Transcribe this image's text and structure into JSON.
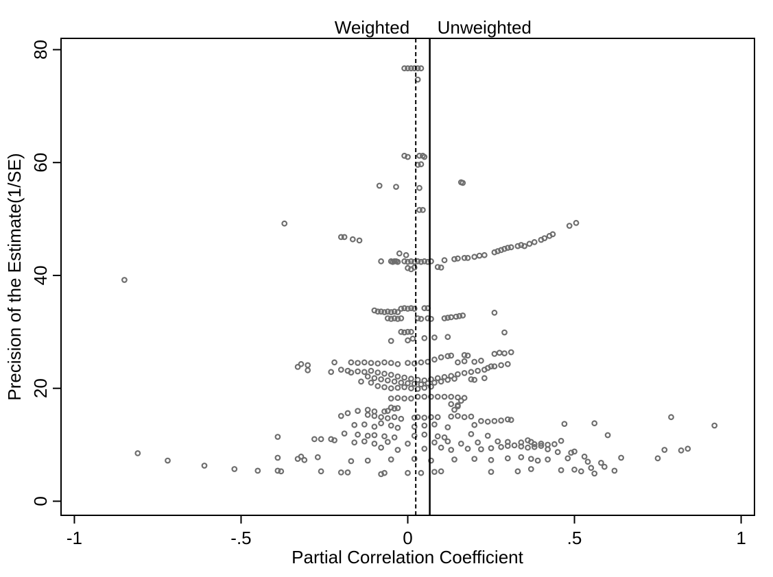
{
  "chart_data": {
    "type": "scatter",
    "title": "",
    "xlabel": "Partial Correlation Coefficient",
    "ylabel": "Precision of the Estimate(1/SE)",
    "xlim": [
      -1.04,
      1.04
    ],
    "ylim": [
      -2.5,
      82
    ],
    "xticks": [
      {
        "value": -1,
        "label": "-1"
      },
      {
        "value": -0.5,
        "label": "-.5"
      },
      {
        "value": 0,
        "label": "0"
      },
      {
        "value": 0.5,
        "label": ".5"
      },
      {
        "value": 1,
        "label": "1"
      }
    ],
    "yticks": [
      {
        "value": 0,
        "label": "0"
      },
      {
        "value": 20,
        "label": "20"
      },
      {
        "value": 40,
        "label": "40"
      },
      {
        "value": 60,
        "label": "60"
      },
      {
        "value": 80,
        "label": "80"
      }
    ],
    "grid": false,
    "reference_lines": [
      {
        "x": 0.024,
        "style": "dashed",
        "label": "Weighted"
      },
      {
        "x": 0.066,
        "style": "solid",
        "label": "Unweighted"
      }
    ],
    "marker": {
      "shape": "hollow-circle",
      "color": "#6e6e6e"
    },
    "points": [
      [
        -0.01,
        76.7
      ],
      [
        0.0,
        76.7
      ],
      [
        0.01,
        76.7
      ],
      [
        0.02,
        76.7
      ],
      [
        0.03,
        76.7
      ],
      [
        0.04,
        76.7
      ],
      [
        0.03,
        74.7
      ],
      [
        -0.01,
        61.2
      ],
      [
        0.0,
        61.0
      ],
      [
        0.035,
        61.2
      ],
      [
        0.045,
        61.2
      ],
      [
        0.05,
        61.0
      ],
      [
        0.03,
        59.6
      ],
      [
        0.04,
        59.7
      ],
      [
        -0.085,
        55.9
      ],
      [
        -0.035,
        55.7
      ],
      [
        0.035,
        55.5
      ],
      [
        0.16,
        56.5
      ],
      [
        0.165,
        56.4
      ],
      [
        0.035,
        51.6
      ],
      [
        0.045,
        51.6
      ],
      [
        -0.37,
        49.2
      ],
      [
        0.485,
        48.8
      ],
      [
        0.505,
        49.3
      ],
      [
        -0.2,
        46.8
      ],
      [
        -0.19,
        46.8
      ],
      [
        -0.165,
        46.4
      ],
      [
        -0.145,
        46.2
      ],
      [
        0.35,
        45.2
      ],
      [
        0.365,
        45.6
      ],
      [
        0.38,
        45.9
      ],
      [
        0.4,
        46.3
      ],
      [
        0.41,
        46.6
      ],
      [
        0.425,
        47.0
      ],
      [
        0.435,
        47.3
      ],
      [
        0.26,
        44.1
      ],
      [
        0.27,
        44.3
      ],
      [
        0.28,
        44.5
      ],
      [
        0.29,
        44.7
      ],
      [
        0.3,
        44.9
      ],
      [
        0.31,
        45.0
      ],
      [
        0.33,
        45.2
      ],
      [
        0.34,
        45.4
      ],
      [
        0.2,
        43.3
      ],
      [
        0.215,
        43.5
      ],
      [
        0.23,
        43.6
      ],
      [
        0.14,
        42.9
      ],
      [
        0.15,
        43.0
      ],
      [
        0.17,
        43.1
      ],
      [
        0.18,
        43.1
      ],
      [
        0.11,
        42.7
      ],
      [
        -0.08,
        42.5
      ],
      [
        -0.05,
        42.5
      ],
      [
        -0.045,
        42.4
      ],
      [
        -0.04,
        42.5
      ],
      [
        -0.035,
        42.5
      ],
      [
        -0.03,
        42.4
      ],
      [
        -0.01,
        42.5
      ],
      [
        0.0,
        42.4
      ],
      [
        0.01,
        42.5
      ],
      [
        0.02,
        42.4
      ],
      [
        0.03,
        42.5
      ],
      [
        0.04,
        42.4
      ],
      [
        0.05,
        42.5
      ],
      [
        0.06,
        42.4
      ],
      [
        0.07,
        42.5
      ],
      [
        -0.025,
        43.9
      ],
      [
        -0.005,
        43.6
      ],
      [
        0.0,
        41.3
      ],
      [
        0.01,
        41.1
      ],
      [
        0.02,
        41.4
      ],
      [
        0.09,
        41.5
      ],
      [
        0.1,
        41.4
      ],
      [
        -0.85,
        39.2
      ],
      [
        -0.1,
        33.8
      ],
      [
        -0.09,
        33.6
      ],
      [
        -0.08,
        33.6
      ],
      [
        -0.07,
        33.5
      ],
      [
        -0.06,
        33.6
      ],
      [
        -0.05,
        33.5
      ],
      [
        -0.04,
        33.6
      ],
      [
        -0.03,
        33.5
      ],
      [
        -0.02,
        34.1
      ],
      [
        -0.01,
        34.2
      ],
      [
        0.0,
        34.1
      ],
      [
        0.01,
        34.2
      ],
      [
        0.02,
        34.1
      ],
      [
        0.05,
        34.2
      ],
      [
        0.06,
        34.2
      ],
      [
        -0.06,
        32.4
      ],
      [
        -0.05,
        32.3
      ],
      [
        -0.04,
        32.4
      ],
      [
        -0.03,
        32.3
      ],
      [
        -0.02,
        32.4
      ],
      [
        0.03,
        32.4
      ],
      [
        0.04,
        32.3
      ],
      [
        0.06,
        32.4
      ],
      [
        0.07,
        32.3
      ],
      [
        0.11,
        32.4
      ],
      [
        0.12,
        32.5
      ],
      [
        0.13,
        32.6
      ],
      [
        0.145,
        32.7
      ],
      [
        0.155,
        32.8
      ],
      [
        0.165,
        32.9
      ],
      [
        0.26,
        33.4
      ],
      [
        -0.02,
        30.0
      ],
      [
        -0.01,
        29.9
      ],
      [
        0.0,
        30.0
      ],
      [
        0.01,
        30.0
      ],
      [
        0.29,
        29.9
      ],
      [
        -0.05,
        28.4
      ],
      [
        0.0,
        28.5
      ],
      [
        0.015,
        28.8
      ],
      [
        0.05,
        28.9
      ],
      [
        0.08,
        29.0
      ],
      [
        0.12,
        29.1
      ],
      [
        -0.17,
        24.6
      ],
      [
        -0.15,
        24.5
      ],
      [
        -0.13,
        24.6
      ],
      [
        -0.11,
        24.5
      ],
      [
        -0.09,
        24.4
      ],
      [
        -0.07,
        24.6
      ],
      [
        -0.05,
        24.5
      ],
      [
        -0.03,
        24.3
      ],
      [
        0.0,
        24.5
      ],
      [
        0.02,
        24.4
      ],
      [
        0.04,
        24.6
      ],
      [
        0.06,
        24.7
      ],
      [
        0.08,
        25.1
      ],
      [
        0.1,
        25.5
      ],
      [
        0.12,
        25.7
      ],
      [
        0.13,
        25.8
      ],
      [
        0.17,
        25.9
      ],
      [
        0.18,
        25.8
      ],
      [
        0.15,
        24.6
      ],
      [
        0.17,
        24.8
      ],
      [
        0.2,
        24.7
      ],
      [
        0.22,
        24.9
      ],
      [
        0.26,
        26.1
      ],
      [
        0.275,
        26.3
      ],
      [
        0.29,
        26.2
      ],
      [
        0.31,
        26.4
      ],
      [
        0.24,
        23.6
      ],
      [
        0.26,
        23.9
      ],
      [
        0.28,
        24.1
      ],
      [
        0.3,
        24.3
      ],
      [
        0.25,
        23.9
      ],
      [
        -0.33,
        23.8
      ],
      [
        -0.32,
        24.3
      ],
      [
        -0.3,
        24.1
      ],
      [
        -0.3,
        23.2
      ],
      [
        -0.22,
        24.6
      ],
      [
        -0.23,
        22.9
      ],
      [
        -0.2,
        23.3
      ],
      [
        -0.18,
        23.1
      ],
      [
        -0.17,
        22.8
      ],
      [
        -0.15,
        23.0
      ],
      [
        -0.13,
        22.9
      ],
      [
        -0.11,
        23.1
      ],
      [
        -0.09,
        22.8
      ],
      [
        -0.07,
        22.6
      ],
      [
        -0.05,
        22.4
      ],
      [
        -0.03,
        22.1
      ],
      [
        -0.01,
        21.9
      ],
      [
        0.01,
        21.7
      ],
      [
        0.03,
        21.5
      ],
      [
        0.05,
        21.4
      ],
      [
        0.07,
        21.6
      ],
      [
        0.09,
        21.8
      ],
      [
        0.11,
        22.0
      ],
      [
        0.13,
        22.2
      ],
      [
        0.15,
        22.5
      ],
      [
        0.17,
        22.7
      ],
      [
        0.19,
        22.9
      ],
      [
        0.21,
        23.1
      ],
      [
        0.23,
        23.3
      ],
      [
        -0.12,
        22.1
      ],
      [
        -0.1,
        21.8
      ],
      [
        -0.08,
        21.6
      ],
      [
        -0.06,
        21.4
      ],
      [
        -0.04,
        21.2
      ],
      [
        -0.02,
        21.0
      ],
      [
        0.0,
        20.9
      ],
      [
        0.02,
        20.8
      ],
      [
        0.04,
        20.7
      ],
      [
        0.06,
        20.9
      ],
      [
        0.08,
        21.0
      ],
      [
        0.1,
        21.2
      ],
      [
        0.12,
        21.5
      ],
      [
        0.14,
        21.7
      ],
      [
        -0.09,
        20.4
      ],
      [
        -0.07,
        20.2
      ],
      [
        -0.05,
        20.0
      ],
      [
        -0.03,
        20.1
      ],
      [
        -0.01,
        20.2
      ],
      [
        0.01,
        20.0
      ],
      [
        0.03,
        19.9
      ],
      [
        0.05,
        20.1
      ],
      [
        0.07,
        20.3
      ],
      [
        0.19,
        21.6
      ],
      [
        0.2,
        21.5
      ],
      [
        0.23,
        21.8
      ],
      [
        -0.11,
        21.0
      ],
      [
        -0.14,
        21.2
      ],
      [
        0.03,
        18.5
      ],
      [
        0.05,
        18.5
      ],
      [
        0.07,
        18.5
      ],
      [
        0.09,
        18.5
      ],
      [
        0.11,
        18.5
      ],
      [
        0.13,
        18.5
      ],
      [
        0.15,
        18.4
      ],
      [
        0.17,
        18.3
      ],
      [
        -0.05,
        18.2
      ],
      [
        -0.03,
        18.3
      ],
      [
        -0.01,
        18.2
      ],
      [
        0.01,
        18.2
      ],
      [
        0.13,
        17.2
      ],
      [
        0.15,
        17.0
      ],
      [
        0.16,
        17.8
      ],
      [
        0.14,
        16.2
      ],
      [
        0.15,
        16.8
      ],
      [
        -0.05,
        16.6
      ],
      [
        -0.04,
        16.4
      ],
      [
        -0.03,
        16.5
      ],
      [
        -0.06,
        16.0
      ],
      [
        -0.07,
        15.9
      ],
      [
        -0.2,
        15.1
      ],
      [
        -0.18,
        15.6
      ],
      [
        -0.15,
        16.0
      ],
      [
        -0.12,
        16.2
      ],
      [
        -0.1,
        15.9
      ],
      [
        -0.12,
        15.3
      ],
      [
        -0.1,
        15.1
      ],
      [
        -0.08,
        14.9
      ],
      [
        -0.06,
        14.7
      ],
      [
        -0.04,
        14.9
      ],
      [
        -0.02,
        14.6
      ],
      [
        0.02,
        14.8
      ],
      [
        0.03,
        14.9
      ],
      [
        0.05,
        14.8
      ],
      [
        0.07,
        14.9
      ],
      [
        0.09,
        14.9
      ],
      [
        0.13,
        15.0
      ],
      [
        0.15,
        15.1
      ],
      [
        0.17,
        14.9
      ],
      [
        0.19,
        15.0
      ],
      [
        0.22,
        14.2
      ],
      [
        0.24,
        14.1
      ],
      [
        0.26,
        14.2
      ],
      [
        0.28,
        14.3
      ],
      [
        0.3,
        14.5
      ],
      [
        0.31,
        14.4
      ],
      [
        -0.16,
        13.5
      ],
      [
        -0.13,
        13.6
      ],
      [
        -0.1,
        13.2
      ],
      [
        -0.08,
        13.8
      ],
      [
        -0.05,
        13.4
      ],
      [
        -0.03,
        13.0
      ],
      [
        0.02,
        13.2
      ],
      [
        0.05,
        13.4
      ],
      [
        0.08,
        13.6
      ],
      [
        0.12,
        13.1
      ],
      [
        0.2,
        13.5
      ],
      [
        -0.19,
        12.0
      ],
      [
        -0.15,
        11.8
      ],
      [
        -0.12,
        11.6
      ],
      [
        -0.1,
        11.7
      ],
      [
        -0.07,
        11.5
      ],
      [
        -0.04,
        11.3
      ],
      [
        0.02,
        11.6
      ],
      [
        0.05,
        11.8
      ],
      [
        0.09,
        11.5
      ],
      [
        0.11,
        11.3
      ],
      [
        -0.39,
        11.4
      ],
      [
        -0.28,
        11.0
      ],
      [
        -0.26,
        11.0
      ],
      [
        -0.23,
        11.0
      ],
      [
        -0.22,
        10.8
      ],
      [
        -0.16,
        10.4
      ],
      [
        -0.13,
        10.6
      ],
      [
        -0.1,
        10.2
      ],
      [
        -0.06,
        10.5
      ],
      [
        0.0,
        10.2
      ],
      [
        0.08,
        10.4
      ],
      [
        0.12,
        10.6
      ],
      [
        0.16,
        10.2
      ],
      [
        0.21,
        10.4
      ],
      [
        0.19,
        11.9
      ],
      [
        0.24,
        11.6
      ],
      [
        0.27,
        10.6
      ],
      [
        0.3,
        10.5
      ],
      [
        0.34,
        10.4
      ],
      [
        0.36,
        10.8
      ],
      [
        0.37,
        10.5
      ],
      [
        0.38,
        10.1
      ],
      [
        0.4,
        10.2
      ],
      [
        0.42,
        10.0
      ],
      [
        0.44,
        10.1
      ],
      [
        0.46,
        10.7
      ],
      [
        0.6,
        11.7
      ],
      [
        0.47,
        13.7
      ],
      [
        0.56,
        13.8
      ],
      [
        0.79,
        14.9
      ],
      [
        0.92,
        13.4
      ],
      [
        -0.08,
        9.5
      ],
      [
        -0.03,
        9.1
      ],
      [
        0.05,
        9.3
      ],
      [
        0.1,
        9.5
      ],
      [
        0.13,
        9.1
      ],
      [
        0.18,
        9.3
      ],
      [
        0.22,
        9.2
      ],
      [
        0.25,
        9.4
      ],
      [
        0.28,
        9.6
      ],
      [
        0.3,
        9.8
      ],
      [
        0.32,
        9.9
      ],
      [
        0.34,
        9.7
      ],
      [
        0.36,
        9.5
      ],
      [
        0.38,
        9.6
      ],
      [
        0.4,
        9.8
      ],
      [
        0.42,
        9.2
      ],
      [
        0.45,
        8.7
      ],
      [
        0.49,
        8.6
      ],
      [
        0.5,
        8.8
      ],
      [
        -0.39,
        7.7
      ],
      [
        -0.33,
        7.5
      ],
      [
        -0.32,
        7.9
      ],
      [
        -0.31,
        7.3
      ],
      [
        -0.27,
        7.8
      ],
      [
        -0.17,
        7.1
      ],
      [
        -0.12,
        7.2
      ],
      [
        -0.05,
        7.4
      ],
      [
        0.02,
        7.5
      ],
      [
        0.07,
        7.2
      ],
      [
        0.14,
        7.4
      ],
      [
        0.2,
        7.5
      ],
      [
        0.25,
        7.3
      ],
      [
        0.3,
        7.6
      ],
      [
        0.34,
        7.8
      ],
      [
        0.37,
        7.5
      ],
      [
        0.39,
        7.2
      ],
      [
        0.42,
        7.4
      ],
      [
        0.48,
        7.6
      ],
      [
        0.53,
        7.9
      ],
      [
        0.54,
        7.0
      ],
      [
        0.58,
        6.8
      ],
      [
        0.64,
        7.7
      ],
      [
        -0.81,
        8.5
      ],
      [
        -0.72,
        7.2
      ],
      [
        -0.61,
        6.3
      ],
      [
        -0.52,
        5.7
      ],
      [
        -0.45,
        5.4
      ],
      [
        -0.39,
        5.4
      ],
      [
        -0.38,
        5.3
      ],
      [
        -0.26,
        5.3
      ],
      [
        -0.2,
        5.1
      ],
      [
        -0.18,
        5.1
      ],
      [
        -0.08,
        4.8
      ],
      [
        -0.07,
        5.0
      ],
      [
        0.0,
        5.0
      ],
      [
        0.04,
        5.0
      ],
      [
        0.08,
        5.2
      ],
      [
        0.1,
        5.3
      ],
      [
        0.25,
        5.2
      ],
      [
        0.33,
        5.3
      ],
      [
        0.37,
        5.7
      ],
      [
        0.46,
        5.5
      ],
      [
        0.5,
        5.6
      ],
      [
        0.52,
        5.3
      ],
      [
        0.55,
        5.9
      ],
      [
        0.56,
        4.9
      ],
      [
        0.59,
        6.1
      ],
      [
        0.62,
        5.4
      ],
      [
        0.75,
        7.6
      ],
      [
        0.77,
        9.1
      ],
      [
        0.82,
        9.0
      ],
      [
        0.84,
        9.3
      ]
    ]
  }
}
